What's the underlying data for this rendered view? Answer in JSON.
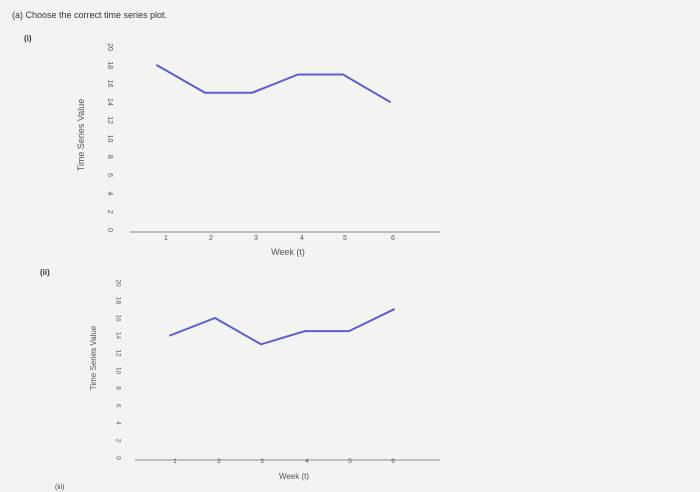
{
  "question": "(a) Choose the correct time series plot.",
  "parts": [
    {
      "label": "(i)"
    },
    {
      "label": "(ii)"
    },
    {
      "label": "(iii)"
    }
  ],
  "colors": {
    "line": "#5b5ed2",
    "axis": "#8a8a8a",
    "text": "#555555"
  },
  "chart_data": [
    {
      "type": "line",
      "title": "",
      "xlabel": "Week (t)",
      "ylabel": "Time Series Value",
      "x": [
        1,
        2,
        3,
        4,
        5,
        6
      ],
      "y": [
        18,
        15,
        15,
        17,
        17,
        14
      ],
      "xlim": [
        0,
        6.5
      ],
      "ylim": [
        0,
        20
      ],
      "yticks": [
        0,
        2,
        4,
        6,
        8,
        10,
        12,
        14,
        16,
        18,
        20
      ],
      "xticks": [
        1,
        2,
        3,
        4,
        5,
        6
      ],
      "grid": false
    },
    {
      "type": "line",
      "title": "",
      "xlabel": "Week (t)",
      "ylabel": "Time Series Value",
      "x": [
        1,
        2,
        3,
        4,
        5,
        6
      ],
      "y": [
        14,
        16,
        13,
        14.5,
        14.5,
        17
      ],
      "xlim": [
        0,
        6.5
      ],
      "ylim": [
        0,
        20
      ],
      "yticks": [
        0,
        2,
        4,
        6,
        8,
        10,
        12,
        14,
        16,
        18,
        20
      ],
      "xticks": [
        1,
        2,
        3,
        4,
        5,
        6
      ],
      "grid": false
    }
  ]
}
